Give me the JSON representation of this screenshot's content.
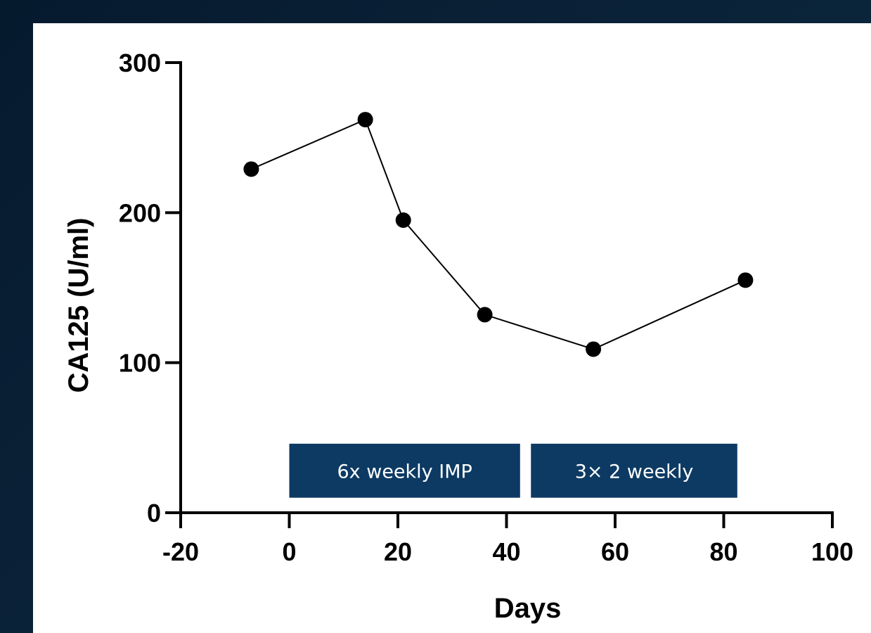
{
  "colors": {
    "background": "#0a2238",
    "panel": "#ffffff",
    "axis": "#000000",
    "series": "#000000",
    "period_box": "#0d3a63",
    "period_text": "#ffffff"
  },
  "chart_data": {
    "type": "line",
    "title": "",
    "xlabel": "Days",
    "ylabel": "CA125 (U/ml)",
    "xlim": [
      -20,
      100
    ],
    "ylim": [
      0,
      300
    ],
    "x_ticks": [
      "-20",
      "0",
      "20",
      "40",
      "60",
      "80",
      "100"
    ],
    "y_ticks": [
      "0",
      "100",
      "200",
      "300"
    ],
    "grid": false,
    "series": [
      {
        "x": [
          -7,
          14,
          21,
          36,
          56,
          84
        ],
        "y": [
          229,
          262,
          195,
          132,
          109,
          155
        ]
      }
    ],
    "periods": [
      {
        "label": "6x weekly IMP",
        "start": 0,
        "end": 42.5,
        "y_low": 10,
        "y_high": 46
      },
      {
        "label": "3× 2 weekly",
        "start": 44.5,
        "end": 82.5,
        "y_low": 10,
        "y_high": 46
      }
    ]
  }
}
